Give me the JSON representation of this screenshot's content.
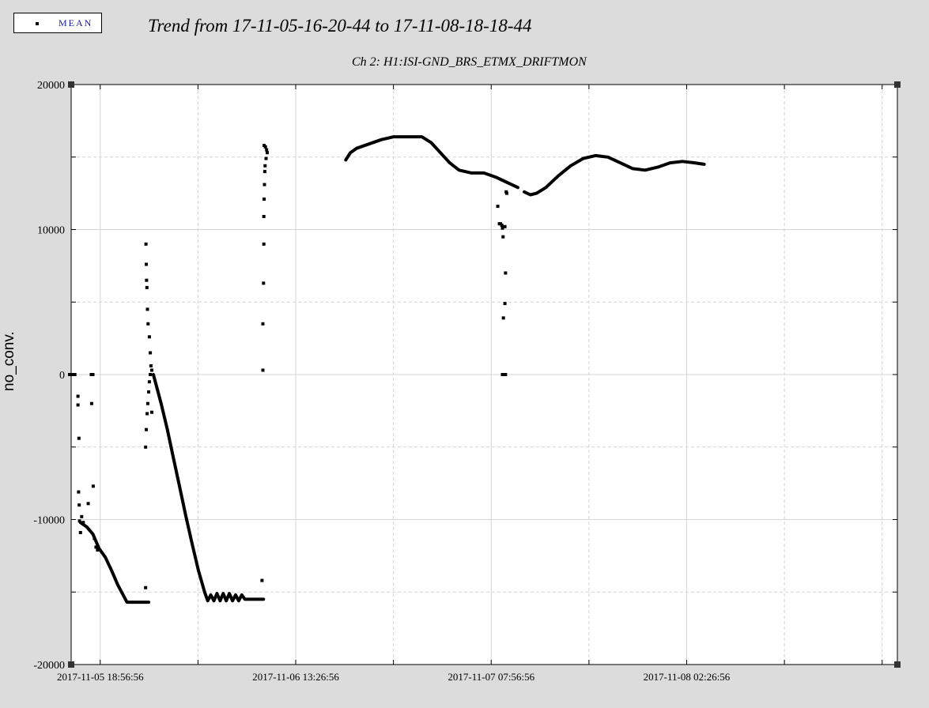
{
  "legend": {
    "label": "MEAN"
  },
  "chart_data": {
    "type": "scatter",
    "title": "Trend from 17-11-05-16-20-44 to 17-11-08-18-18-44",
    "subtitle": "Ch 2: H1:ISI-GND_BRS_ETMX_DRIFTMON",
    "ylabel": "no_conv.",
    "xlabel": "",
    "ylim": [
      -20000,
      20000
    ],
    "xlim": [
      0,
      266280
    ],
    "yticks": [
      20000,
      10000,
      0,
      -10000,
      -20000
    ],
    "ytick_labels": [
      "20000",
      "10000",
      "0",
      "-10000",
      "-20000"
    ],
    "xticks": [
      9372,
      72372,
      135372,
      198372
    ],
    "xtick_labels": [
      "2017-11-05 18:56:56",
      "2017-11-06 13:26:56",
      "2017-11-07 07:56:56",
      "2017-11-08 02:26:56"
    ],
    "grid": true,
    "marker_color": "#000000",
    "series": [
      {
        "name": "MEAN",
        "polylines": [
          [
            [
              3000,
              -10200
            ],
            [
              5000,
              -10500
            ],
            [
              7000,
              -11000
            ],
            [
              9000,
              -12000
            ],
            [
              11000,
              -12600
            ],
            [
              13000,
              -13500
            ],
            [
              15000,
              -14500
            ],
            [
              18000,
              -15700
            ],
            [
              25000,
              -15700
            ]
          ],
          [
            [
              26500,
              0
            ],
            [
              27500,
              -800
            ],
            [
              29000,
              -2000
            ],
            [
              31000,
              -3800
            ],
            [
              33000,
              -5800
            ],
            [
              35000,
              -7800
            ],
            [
              37000,
              -9800
            ],
            [
              39000,
              -11700
            ],
            [
              41000,
              -13500
            ],
            [
              43000,
              -15000
            ],
            [
              44000,
              -15600
            ],
            [
              45000,
              -15200
            ],
            [
              46000,
              -15600
            ],
            [
              47000,
              -15100
            ],
            [
              48000,
              -15600
            ],
            [
              49000,
              -15100
            ],
            [
              50000,
              -15600
            ],
            [
              51000,
              -15100
            ],
            [
              52000,
              -15600
            ],
            [
              53000,
              -15200
            ],
            [
              54000,
              -15600
            ],
            [
              55000,
              -15200
            ],
            [
              56000,
              -15500
            ],
            [
              58000,
              -15500
            ],
            [
              62000,
              -15500
            ]
          ],
          [
            [
              88500,
              14800
            ],
            [
              90000,
              15300
            ],
            [
              92000,
              15600
            ],
            [
              96000,
              15900
            ],
            [
              100000,
              16200
            ],
            [
              104000,
              16400
            ],
            [
              109000,
              16400
            ],
            [
              113000,
              16400
            ],
            [
              116000,
              16000
            ],
            [
              119000,
              15300
            ],
            [
              122000,
              14600
            ],
            [
              125000,
              14100
            ],
            [
              129000,
              13900
            ],
            [
              133000,
              13900
            ],
            [
              137000,
              13600
            ],
            [
              141000,
              13200
            ],
            [
              144000,
              12900
            ]
          ],
          [
            [
              146000,
              12600
            ],
            [
              148000,
              12400
            ],
            [
              150000,
              12500
            ],
            [
              153000,
              12900
            ],
            [
              157000,
              13700
            ],
            [
              161000,
              14400
            ],
            [
              165000,
              14900
            ],
            [
              169000,
              15100
            ],
            [
              173000,
              15000
            ],
            [
              177000,
              14600
            ],
            [
              181000,
              14200
            ],
            [
              185000,
              14100
            ],
            [
              189000,
              14300
            ],
            [
              193000,
              14600
            ],
            [
              197000,
              14700
            ],
            [
              201000,
              14600
            ],
            [
              204000,
              14500
            ]
          ]
        ],
        "points": [
          [
            -500,
            0
          ],
          [
            400,
            0
          ],
          [
            1200,
            0
          ],
          [
            2200,
            -1500
          ],
          [
            2200,
            -2100
          ],
          [
            2500,
            -4400
          ],
          [
            2400,
            -8100
          ],
          [
            2600,
            -9000
          ],
          [
            2700,
            -10100
          ],
          [
            3000,
            -10900
          ],
          [
            3400,
            -9800
          ],
          [
            3900,
            -10200
          ],
          [
            5500,
            -8900
          ],
          [
            6500,
            0
          ],
          [
            7000,
            0
          ],
          [
            6600,
            -2000
          ],
          [
            7100,
            -7700
          ],
          [
            7500,
            -11300
          ],
          [
            8000,
            -11900
          ],
          [
            8500,
            -12100
          ],
          [
            24000,
            -14700
          ],
          [
            24000,
            -5000
          ],
          [
            24200,
            -3800
          ],
          [
            24500,
            -2700
          ],
          [
            24700,
            -2000
          ],
          [
            25000,
            -1200
          ],
          [
            25200,
            -500
          ],
          [
            25500,
            0
          ],
          [
            25700,
            600
          ],
          [
            26000,
            300
          ],
          [
            24600,
            4500
          ],
          [
            24400,
            6000
          ],
          [
            24300,
            6500
          ],
          [
            24200,
            7600
          ],
          [
            24100,
            9000
          ],
          [
            24800,
            3500
          ],
          [
            25200,
            2600
          ],
          [
            25500,
            1500
          ],
          [
            26000,
            -2600
          ],
          [
            61500,
            -14200
          ],
          [
            61800,
            300
          ],
          [
            61800,
            3500
          ],
          [
            62000,
            6300
          ],
          [
            62100,
            9000
          ],
          [
            62100,
            10900
          ],
          [
            62200,
            12100
          ],
          [
            62300,
            13100
          ],
          [
            62400,
            14000
          ],
          [
            62500,
            14400
          ],
          [
            62800,
            14900
          ],
          [
            63000,
            15500
          ],
          [
            63200,
            15300
          ],
          [
            62200,
            15800
          ],
          [
            62600,
            15700
          ],
          [
            137500,
            11600
          ],
          [
            138000,
            10400
          ],
          [
            138400,
            10400
          ],
          [
            138800,
            10300
          ],
          [
            139000,
            10100
          ],
          [
            139200,
            9500
          ],
          [
            139800,
            10200
          ],
          [
            140000,
            7000
          ],
          [
            139800,
            4900
          ],
          [
            139300,
            3900
          ],
          [
            139000,
            0
          ],
          [
            139300,
            0
          ],
          [
            140000,
            0
          ],
          [
            140200,
            12600
          ],
          [
            140400,
            12500
          ]
        ]
      }
    ]
  }
}
